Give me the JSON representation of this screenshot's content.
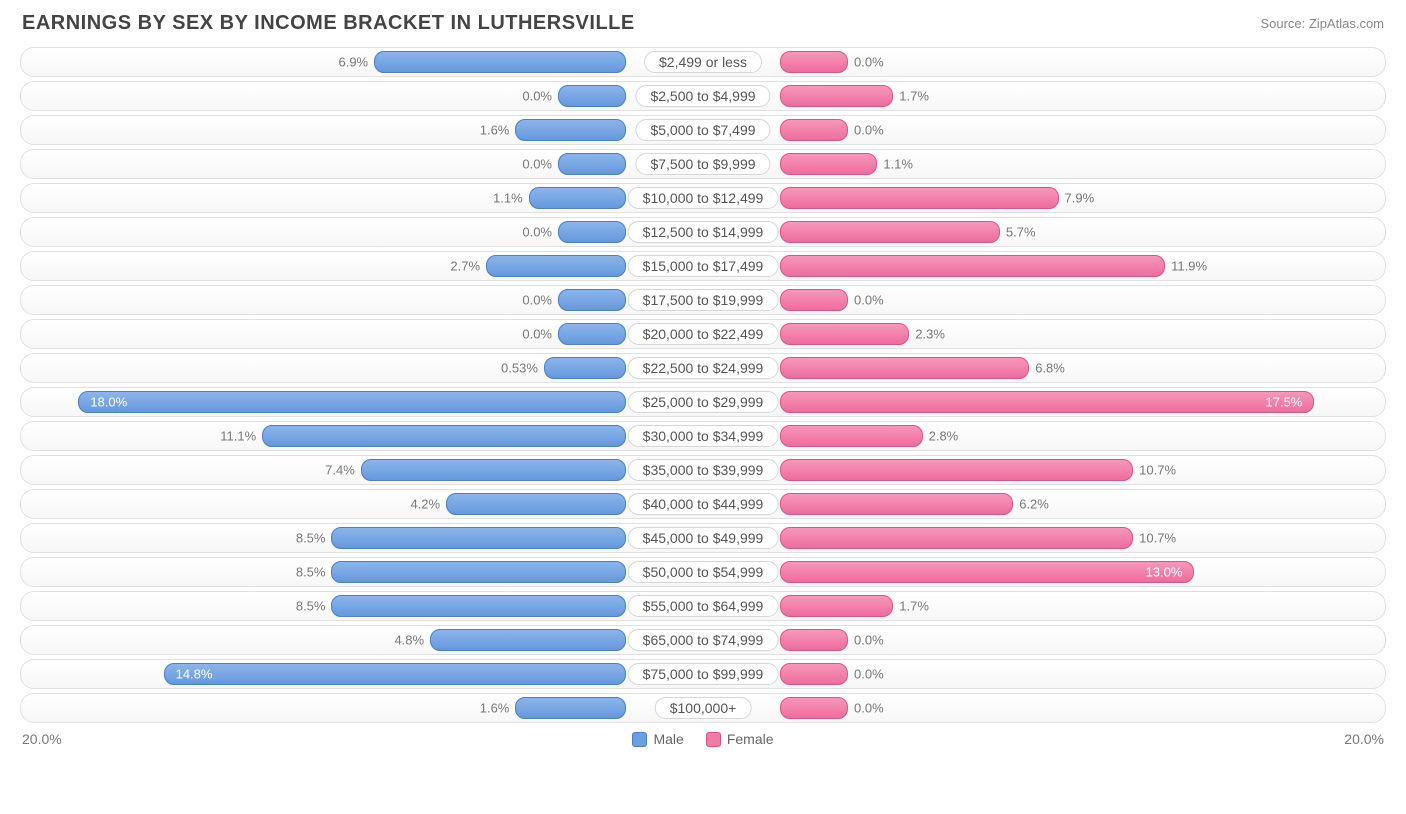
{
  "title": "EARNINGS BY SEX BY INCOME BRACKET IN LUTHERSVILLE",
  "source": "Source: ZipAtlas.com",
  "axis_max": 20.0,
  "axis_left_label": "20.0%",
  "axis_right_label": "20.0%",
  "legend": {
    "male": {
      "label": "Male",
      "color": "#6c9fe0",
      "border": "#4a7fc5"
    },
    "female": {
      "label": "Female",
      "color": "#f07ba4",
      "border": "#e05088"
    }
  },
  "colors": {
    "male_fill": "linear-gradient(#8cb5e8, #6498de)",
    "male_border": "#4a7fc5",
    "female_fill": "linear-gradient(#f598b9, #ee6c9d)",
    "female_border": "#e05088",
    "row_border": "#e0e0e0",
    "label_border": "#d6d6d6",
    "text_muted": "#777777",
    "title_color": "#444444"
  },
  "label_half_width": 77,
  "inside_threshold": 12.5,
  "brackets": [
    {
      "label": "$2,499 or less",
      "male": 6.9,
      "female": 0.0,
      "male_txt": "6.9%",
      "female_txt": "0.0%"
    },
    {
      "label": "$2,500 to $4,999",
      "male": 0.0,
      "female": 1.7,
      "male_txt": "0.0%",
      "female_txt": "1.7%"
    },
    {
      "label": "$5,000 to $7,499",
      "male": 1.6,
      "female": 0.0,
      "male_txt": "1.6%",
      "female_txt": "0.0%"
    },
    {
      "label": "$7,500 to $9,999",
      "male": 0.0,
      "female": 1.1,
      "male_txt": "0.0%",
      "female_txt": "1.1%"
    },
    {
      "label": "$10,000 to $12,499",
      "male": 1.1,
      "female": 7.9,
      "male_txt": "1.1%",
      "female_txt": "7.9%"
    },
    {
      "label": "$12,500 to $14,999",
      "male": 0.0,
      "female": 5.7,
      "male_txt": "0.0%",
      "female_txt": "5.7%"
    },
    {
      "label": "$15,000 to $17,499",
      "male": 2.7,
      "female": 11.9,
      "male_txt": "2.7%",
      "female_txt": "11.9%"
    },
    {
      "label": "$17,500 to $19,999",
      "male": 0.0,
      "female": 0.0,
      "male_txt": "0.0%",
      "female_txt": "0.0%"
    },
    {
      "label": "$20,000 to $22,499",
      "male": 0.0,
      "female": 2.3,
      "male_txt": "0.0%",
      "female_txt": "2.3%"
    },
    {
      "label": "$22,500 to $24,999",
      "male": 0.53,
      "female": 6.8,
      "male_txt": "0.53%",
      "female_txt": "6.8%"
    },
    {
      "label": "$25,000 to $29,999",
      "male": 18.0,
      "female": 17.5,
      "male_txt": "18.0%",
      "female_txt": "17.5%"
    },
    {
      "label": "$30,000 to $34,999",
      "male": 11.1,
      "female": 2.8,
      "male_txt": "11.1%",
      "female_txt": "2.8%"
    },
    {
      "label": "$35,000 to $39,999",
      "male": 7.4,
      "female": 10.7,
      "male_txt": "7.4%",
      "female_txt": "10.7%"
    },
    {
      "label": "$40,000 to $44,999",
      "male": 4.2,
      "female": 6.2,
      "male_txt": "4.2%",
      "female_txt": "6.2%"
    },
    {
      "label": "$45,000 to $49,999",
      "male": 8.5,
      "female": 10.7,
      "male_txt": "8.5%",
      "female_txt": "10.7%"
    },
    {
      "label": "$50,000 to $54,999",
      "male": 8.5,
      "female": 13.0,
      "male_txt": "8.5%",
      "female_txt": "13.0%"
    },
    {
      "label": "$55,000 to $64,999",
      "male": 8.5,
      "female": 1.7,
      "male_txt": "8.5%",
      "female_txt": "1.7%"
    },
    {
      "label": "$65,000 to $74,999",
      "male": 4.8,
      "female": 0.0,
      "male_txt": "4.8%",
      "female_txt": "0.0%"
    },
    {
      "label": "$75,000 to $99,999",
      "male": 14.8,
      "female": 0.0,
      "male_txt": "14.8%",
      "female_txt": "0.0%"
    },
    {
      "label": "$100,000+",
      "male": 1.6,
      "female": 0.0,
      "male_txt": "1.6%",
      "female_txt": "0.0%"
    }
  ]
}
